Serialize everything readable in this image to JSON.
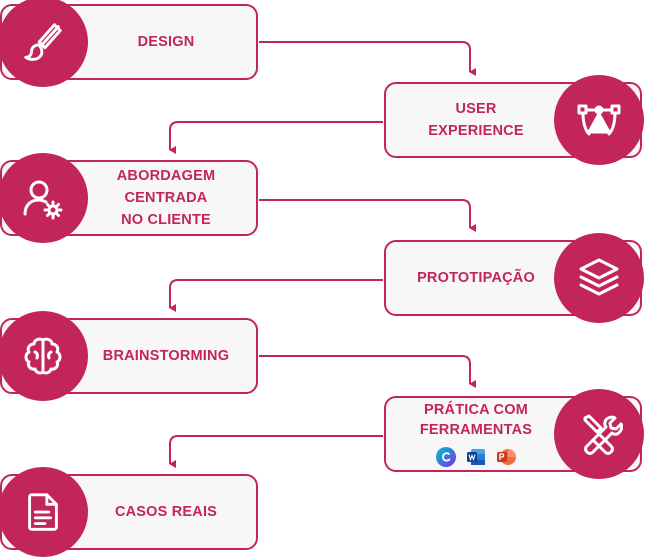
{
  "steps": [
    {
      "label": "DESIGN",
      "icon": "brush-icon"
    },
    {
      "label_line1": "USER",
      "label_line2": "EXPERIENCE",
      "icon": "vector-pen-icon"
    },
    {
      "label_line1": "ABORDAGEM",
      "label_line2": "CENTRADA",
      "label_line3": "NO CLIENTE",
      "icon": "user-gear-icon"
    },
    {
      "label": "PROTOTIPAÇÃO",
      "icon": "layers-icon"
    },
    {
      "label": "BRAINSTORMING",
      "icon": "brain-icon"
    },
    {
      "label_line1": "PRÁTICA COM",
      "label_line2": "FERRAMENTAS",
      "icon": "tools-icon",
      "tool_icons": [
        "canva-icon",
        "word-icon",
        "powerpoint-icon"
      ]
    },
    {
      "label": "CASOS REAIS",
      "icon": "document-icon"
    }
  ],
  "colors": {
    "accent": "#c2255c",
    "card_background": "#f7f7f7",
    "icon": "#ffffff"
  }
}
